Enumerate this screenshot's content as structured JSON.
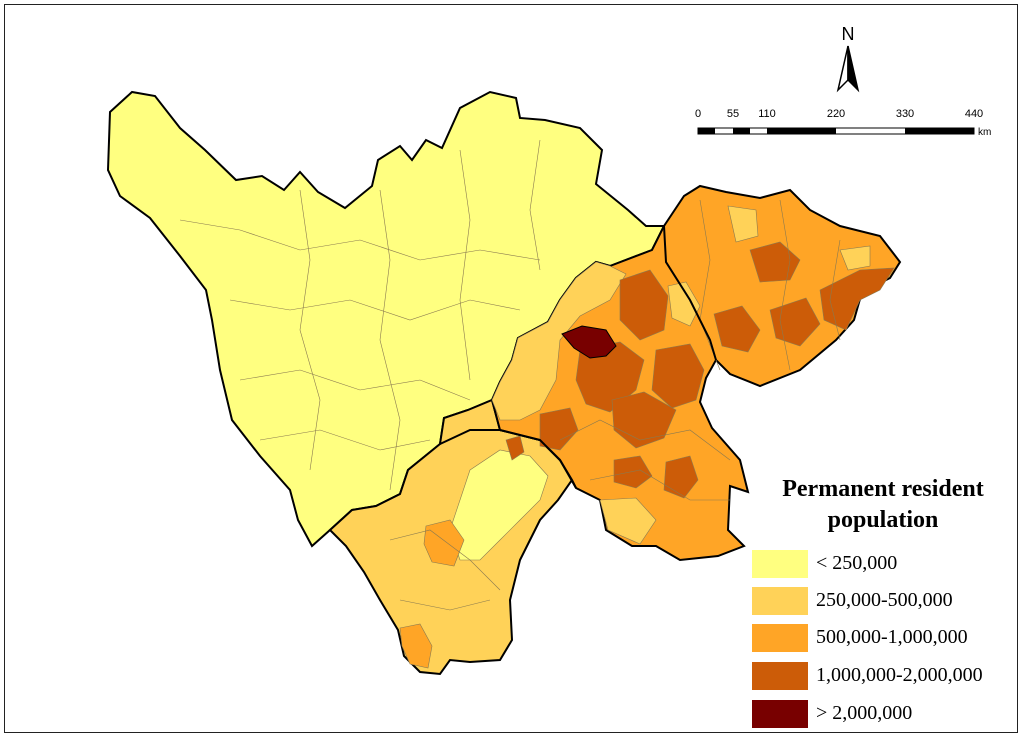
{
  "map": {
    "north_label": "N",
    "scale_bar": {
      "ticks": [
        "0",
        "55",
        "110",
        "220",
        "330",
        "440"
      ],
      "unit": "km"
    },
    "legend": {
      "title_line1": "Permanent resident",
      "title_line2": "population",
      "classes": [
        {
          "label": "< 250,000",
          "color": "#FFFF80"
        },
        {
          "label": "250,000-500,000",
          "color": "#FFD258"
        },
        {
          "label": "500,000-1,000,000",
          "color": "#FFA526"
        },
        {
          "label": "1,000,000-2,000,000",
          "color": "#CC5C08"
        },
        {
          "label": "> 2,000,000",
          "color": "#780000"
        }
      ]
    },
    "colors": {
      "background": "#ffffff",
      "boundary": "#000000",
      "internal_boundary": "#8a7a50"
    }
  }
}
